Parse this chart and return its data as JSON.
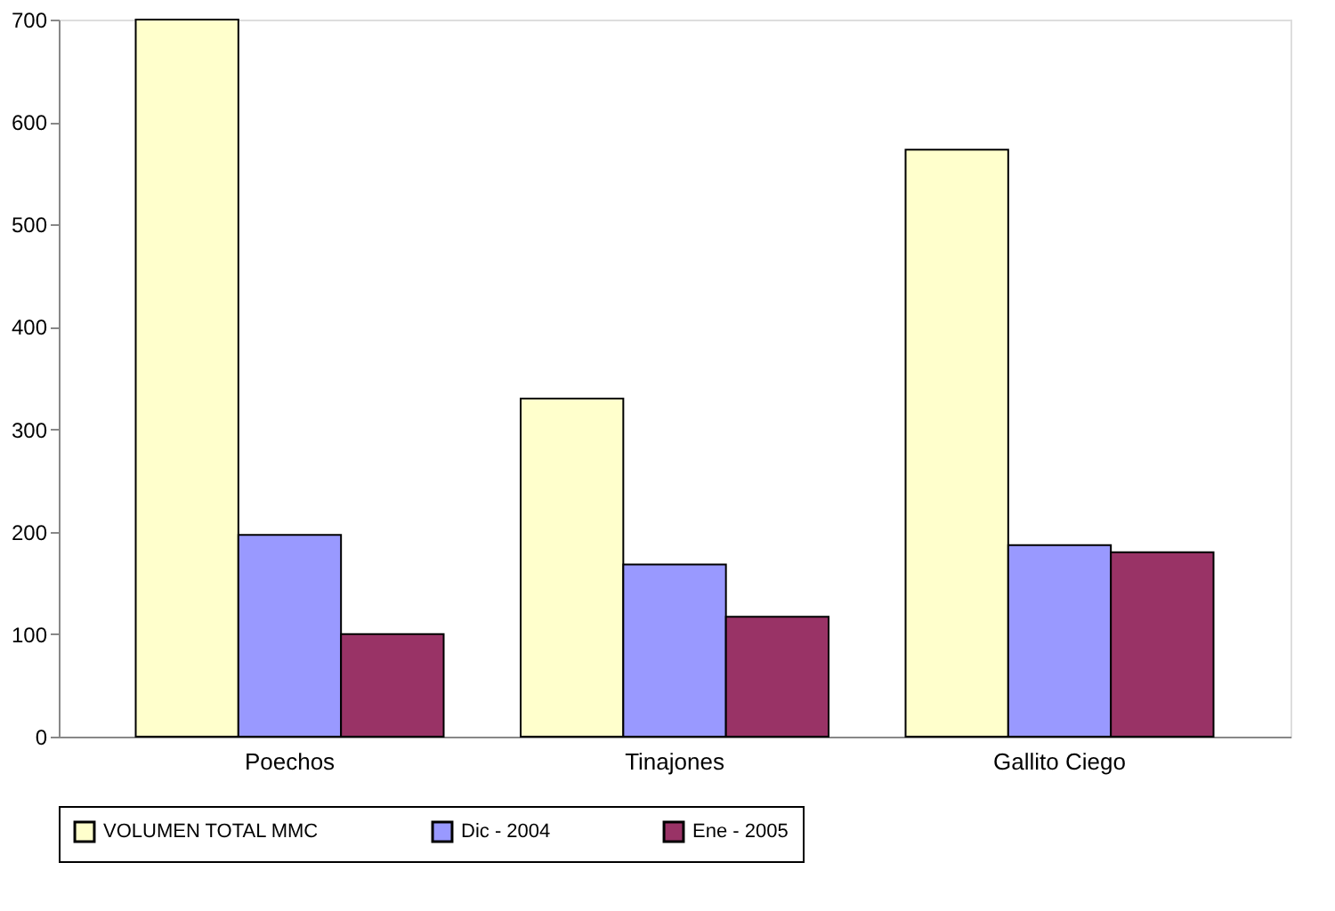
{
  "chart_data": {
    "type": "bar",
    "categories": [
      "Poechos",
      "Tinajones",
      "Gallito Ciego"
    ],
    "series": [
      {
        "name": "VOLUMEN TOTAL MMC",
        "color": "#ffffcc",
        "values": [
          700,
          330,
          573
        ]
      },
      {
        "name": "Dic - 2004",
        "color": "#9999ff",
        "values": [
          197,
          168,
          187
        ]
      },
      {
        "name": "Ene - 2005",
        "color": "#993366",
        "values": [
          100,
          117,
          180
        ]
      }
    ],
    "ylim": [
      0,
      700
    ],
    "yticks": [
      0,
      100,
      200,
      300,
      400,
      500,
      600,
      700
    ],
    "grid": false,
    "legend": "bottom"
  }
}
